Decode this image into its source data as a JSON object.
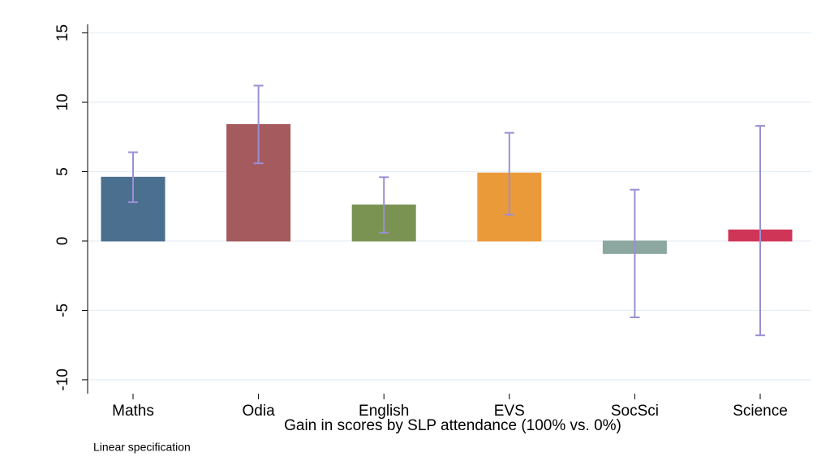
{
  "chart_data": {
    "type": "bar",
    "xlabel": "Gain in scores by SLP attendance (100% vs. 0%)",
    "note": "Linear specification",
    "categories": [
      "Maths",
      "Odia",
      "English",
      "EVS",
      "SocSci",
      "Science"
    ],
    "series": [
      {
        "colors": [
          "#4b6f8f",
          "#a55a5e",
          "#7a9352",
          "#eb9a3a",
          "#8ba79f",
          "#cf3557"
        ],
        "values": [
          4.6,
          8.4,
          2.6,
          4.9,
          -0.9,
          0.8
        ],
        "ci_low": [
          2.8,
          5.6,
          0.6,
          1.9,
          -5.5,
          -6.8
        ],
        "ci_high": [
          6.4,
          11.2,
          4.6,
          7.8,
          3.7,
          8.3
        ]
      }
    ],
    "error_color": "#9b8fd5",
    "ylim": [
      -11,
      15.5
    ],
    "yticks": [
      -10,
      -5,
      0,
      5,
      10,
      15
    ],
    "grid": true
  }
}
